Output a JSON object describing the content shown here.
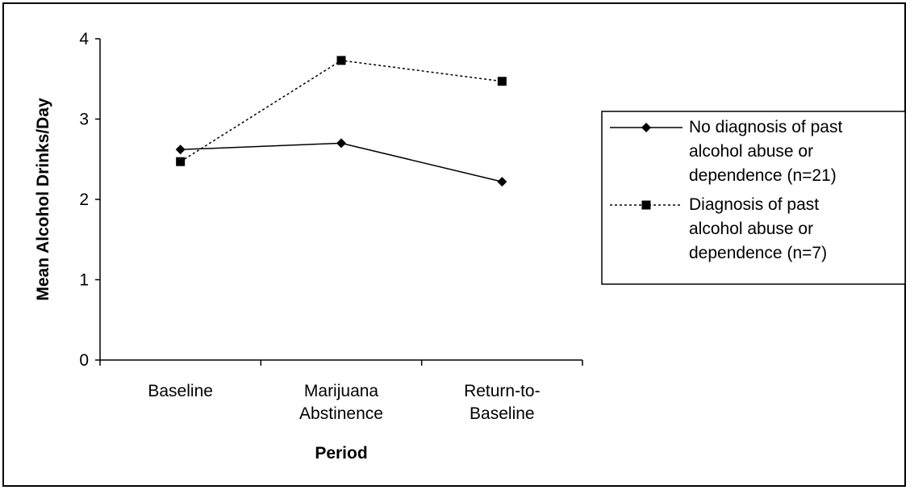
{
  "chart_data": {
    "type": "line",
    "xlabel": "Period",
    "ylabel": "Mean Alcohol Drinks/Day",
    "ylim": [
      0,
      4
    ],
    "yticks": [
      "0",
      "1",
      "2",
      "3",
      "4"
    ],
    "categories": [
      [
        "Baseline"
      ],
      [
        "Marijuana",
        "Abstinence"
      ],
      [
        "Return-to-",
        "Baseline"
      ]
    ],
    "grid": false,
    "legend_position": "right",
    "series": [
      {
        "name": [
          "No diagnosis of past",
          "alcohol abuse or",
          "dependence (n=21)"
        ],
        "values": [
          2.62,
          2.7,
          2.22
        ],
        "marker": "diamond",
        "line_style": "solid",
        "color": "#000000"
      },
      {
        "name": [
          "Diagnosis of past",
          "alcohol abuse or",
          "dependence (n=7)"
        ],
        "values": [
          2.47,
          3.73,
          3.47
        ],
        "marker": "square",
        "line_style": "dotted",
        "color": "#000000"
      }
    ]
  }
}
